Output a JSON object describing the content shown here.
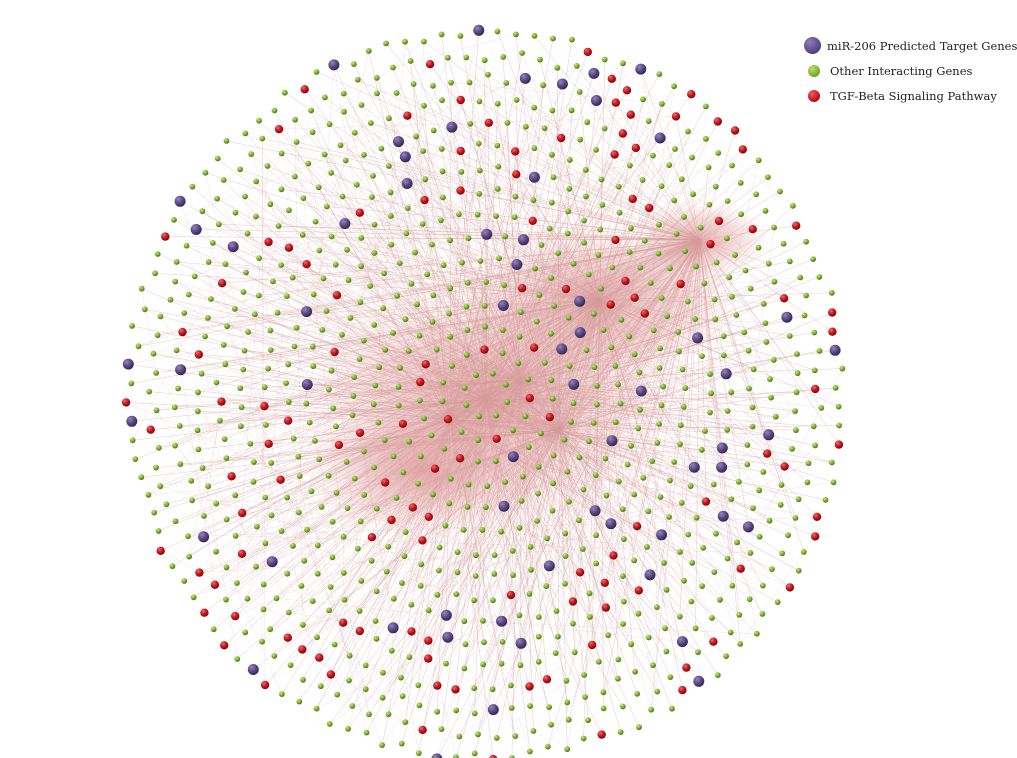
{
  "legend": [
    {
      "label": "miR-206 Predicted Target Genes",
      "color": "#5b4a85",
      "size": "large"
    },
    {
      "label": "Other Interacting Genes",
      "color": "#7db233",
      "size": "small"
    },
    {
      "label": "TGF-Beta Signaling Pathway",
      "color": "#c4161c",
      "size": "small"
    }
  ],
  "colors": {
    "edge": "#d79a9a",
    "hub": "#e7b4b4",
    "target": "#5b4a85",
    "other": "#7db233",
    "tgf": "#c4161c"
  }
}
